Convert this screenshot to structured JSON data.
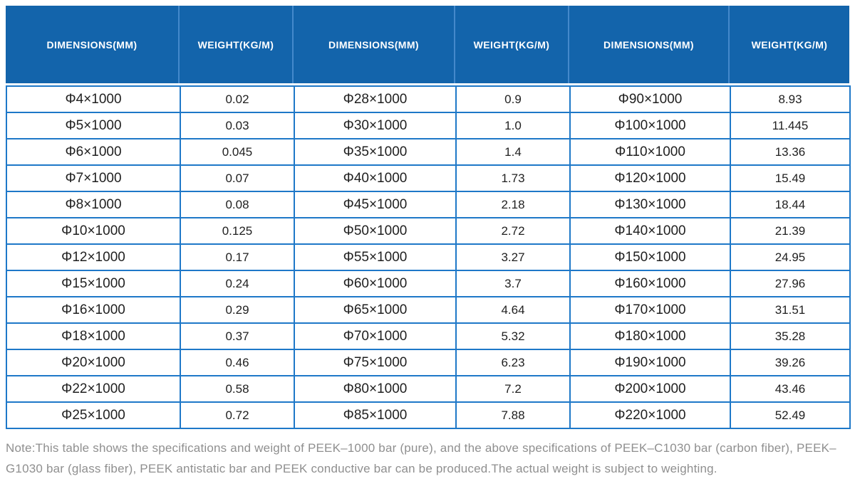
{
  "colors": {
    "header_bg": "#1364ab",
    "header_divider": "#4489cb",
    "grid_border": "#1e78c8",
    "cell_text": "#1f1f1f",
    "header_text": "#ffffff",
    "note_text": "#8f8f8f"
  },
  "header": {
    "columns": [
      "DIMENSIONS(MM)",
      "WEIGHT(KG/M)",
      "DIMENSIONS(MM)",
      "WEIGHT(KG/M)",
      "DIMENSIONS(MM)",
      "WEIGHT(KG/M)"
    ]
  },
  "rows": [
    [
      "Φ4×1000",
      "0.02",
      "Φ28×1000",
      "0.9",
      "Φ90×1000",
      "8.93"
    ],
    [
      "Φ5×1000",
      "0.03",
      "Φ30×1000",
      "1.0",
      "Φ100×1000",
      "11.445"
    ],
    [
      "Φ6×1000",
      "0.045",
      "Φ35×1000",
      "1.4",
      "Φ110×1000",
      "13.36"
    ],
    [
      "Φ7×1000",
      "0.07",
      "Φ40×1000",
      "1.73",
      "Φ120×1000",
      "15.49"
    ],
    [
      "Φ8×1000",
      "0.08",
      "Φ45×1000",
      "2.18",
      "Φ130×1000",
      "18.44"
    ],
    [
      "Φ10×1000",
      "0.125",
      "Φ50×1000",
      "2.72",
      "Φ140×1000",
      "21.39"
    ],
    [
      "Φ12×1000",
      "0.17",
      "Φ55×1000",
      "3.27",
      "Φ150×1000",
      "24.95"
    ],
    [
      "Φ15×1000",
      "0.24",
      "Φ60×1000",
      "3.7",
      "Φ160×1000",
      "27.96"
    ],
    [
      "Φ16×1000",
      "0.29",
      "Φ65×1000",
      "4.64",
      "Φ170×1000",
      "31.51"
    ],
    [
      "Φ18×1000",
      "0.37",
      "Φ70×1000",
      "5.32",
      "Φ180×1000",
      "35.28"
    ],
    [
      "Φ20×1000",
      "0.46",
      "Φ75×1000",
      "6.23",
      "Φ190×1000",
      "39.26"
    ],
    [
      "Φ22×1000",
      "0.58",
      "Φ80×1000",
      "7.2",
      "Φ200×1000",
      "43.46"
    ],
    [
      "Φ25×1000",
      "0.72",
      "Φ85×1000",
      "7.88",
      "Φ220×1000",
      "52.49"
    ]
  ],
  "note": "Note:This table shows the specifications and weight of PEEK–1000 bar (pure), and the above specifications of PEEK–C1030 bar (carbon fiber), PEEK–G1030 bar (glass fiber), PEEK antistatic bar and PEEK conductive bar can be produced.The actual weight is subject to weighting."
}
